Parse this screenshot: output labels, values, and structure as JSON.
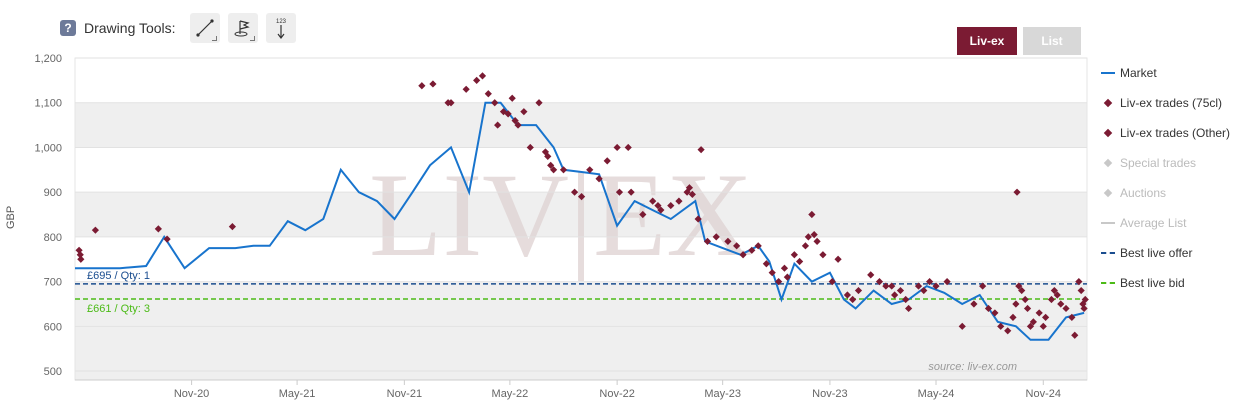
{
  "toolbar": {
    "label": "Drawing Tools:",
    "help_glyph": "?",
    "counter_glyph": "123"
  },
  "tabs": [
    {
      "label": "Liv-ex"
    },
    {
      "label": "List"
    }
  ],
  "watermark": {
    "text": "LIV|EX",
    "source": "source: liv-ex.com"
  },
  "colors": {
    "market": "#1874cd",
    "trade": "#7b1b33",
    "offer": "#1a4d8f",
    "bid": "#4cbb17",
    "disabled": "#c8c8c8",
    "band": "#efefef"
  },
  "legend": [
    {
      "label": "Market",
      "symbol": "line",
      "color": "#1874cd",
      "dash": false,
      "disabled": false
    },
    {
      "label": "Liv-ex trades (75cl)",
      "symbol": "diamond",
      "color": "#7b1b33",
      "disabled": false
    },
    {
      "label": "Liv-ex trades (Other)",
      "symbol": "diamond",
      "color": "#7b1b33",
      "disabled": false
    },
    {
      "label": "Special trades",
      "symbol": "diamond",
      "color": "#c8c8c8",
      "disabled": true
    },
    {
      "label": "Auctions",
      "symbol": "diamond",
      "color": "#c8c8c8",
      "disabled": true
    },
    {
      "label": "Average List",
      "symbol": "line",
      "color": "#c8c8c8",
      "dash": false,
      "disabled": true
    },
    {
      "label": "Best live offer",
      "symbol": "line",
      "color": "#1a4d8f",
      "dash": true,
      "disabled": false
    },
    {
      "label": "Best live bid",
      "symbol": "line",
      "color": "#4cbb17",
      "dash": true,
      "disabled": false
    }
  ],
  "chart_data": {
    "type": "line",
    "ylabel": "GBP",
    "ylim": [
      480,
      1200
    ],
    "yticks": [
      500,
      600,
      700,
      800,
      900,
      1000,
      1100,
      1200
    ],
    "ytick_labels": [
      "500",
      "600",
      "700",
      "800",
      "900",
      "1,000",
      "1,100",
      "1,200"
    ],
    "xlim": [
      "2020-04-15",
      "2025-01-15"
    ],
    "xticks": [
      {
        "date": "2020-11-01",
        "label": "Nov-20"
      },
      {
        "date": "2021-05-01",
        "label": "May-21"
      },
      {
        "date": "2021-11-01",
        "label": "Nov-21"
      },
      {
        "date": "2022-05-01",
        "label": "May-22"
      },
      {
        "date": "2022-11-01",
        "label": "Nov-22"
      },
      {
        "date": "2023-05-01",
        "label": "May-23"
      },
      {
        "date": "2023-11-01",
        "label": "Nov-23"
      },
      {
        "date": "2024-05-01",
        "label": "May-24"
      },
      {
        "date": "2024-11-01",
        "label": "Nov-24"
      }
    ],
    "grid": true,
    "reference_lines": [
      {
        "name": "Best live offer",
        "value": 695,
        "label": "£695 / Qty: 1",
        "color": "#1a4d8f"
      },
      {
        "name": "Best live bid",
        "value": 661,
        "label": "£661 / Qty: 3",
        "color": "#4cbb17"
      }
    ],
    "series": [
      {
        "name": "Market",
        "kind": "line",
        "points": [
          [
            "2020-04-15",
            730
          ],
          [
            "2020-07-01",
            730
          ],
          [
            "2020-08-15",
            735
          ],
          [
            "2020-09-15",
            800
          ],
          [
            "2020-10-20",
            730
          ],
          [
            "2020-12-01",
            775
          ],
          [
            "2021-01-15",
            775
          ],
          [
            "2021-02-15",
            780
          ],
          [
            "2021-03-15",
            780
          ],
          [
            "2021-04-15",
            835
          ],
          [
            "2021-05-15",
            815
          ],
          [
            "2021-06-15",
            840
          ],
          [
            "2021-07-15",
            950
          ],
          [
            "2021-08-15",
            900
          ],
          [
            "2021-09-15",
            880
          ],
          [
            "2021-10-15",
            840
          ],
          [
            "2021-11-15",
            900
          ],
          [
            "2021-12-15",
            960
          ],
          [
            "2022-01-20",
            1000
          ],
          [
            "2022-02-20",
            900
          ],
          [
            "2022-03-20",
            1100
          ],
          [
            "2022-04-15",
            1100
          ],
          [
            "2022-05-15",
            1050
          ],
          [
            "2022-06-15",
            1050
          ],
          [
            "2022-07-15",
            1000
          ],
          [
            "2022-08-01",
            950
          ],
          [
            "2022-09-01",
            945
          ],
          [
            "2022-10-01",
            940
          ],
          [
            "2022-11-01",
            825
          ],
          [
            "2022-12-01",
            880
          ],
          [
            "2023-01-01",
            860
          ],
          [
            "2023-02-01",
            840
          ],
          [
            "2023-03-15",
            880
          ],
          [
            "2023-04-01",
            790
          ],
          [
            "2023-05-01",
            775
          ],
          [
            "2023-06-01",
            760
          ],
          [
            "2023-07-01",
            780
          ],
          [
            "2023-07-20",
            745
          ],
          [
            "2023-08-10",
            660
          ],
          [
            "2023-09-01",
            740
          ],
          [
            "2023-10-01",
            700
          ],
          [
            "2023-11-01",
            720
          ],
          [
            "2023-11-25",
            660
          ],
          [
            "2023-12-15",
            640
          ],
          [
            "2024-01-15",
            680
          ],
          [
            "2024-02-15",
            650
          ],
          [
            "2024-03-15",
            660
          ],
          [
            "2024-04-15",
            690
          ],
          [
            "2024-05-15",
            675
          ],
          [
            "2024-06-15",
            650
          ],
          [
            "2024-07-15",
            670
          ],
          [
            "2024-08-15",
            610
          ],
          [
            "2024-09-15",
            600
          ],
          [
            "2024-10-10",
            570
          ],
          [
            "2024-11-10",
            570
          ],
          [
            "2024-12-10",
            620
          ],
          [
            "2025-01-10",
            630
          ]
        ]
      },
      {
        "name": "Liv-ex trades (75cl)",
        "kind": "scatter",
        "points": [
          [
            "2020-04-22",
            770
          ],
          [
            "2020-04-24",
            760
          ],
          [
            "2020-04-25",
            750
          ],
          [
            "2020-05-20",
            815
          ],
          [
            "2020-09-05",
            818
          ],
          [
            "2020-09-20",
            795
          ],
          [
            "2021-01-10",
            823
          ],
          [
            "2021-12-01",
            1138
          ],
          [
            "2021-12-20",
            1142
          ],
          [
            "2022-01-15",
            1100
          ],
          [
            "2022-01-20",
            1100
          ],
          [
            "2022-02-15",
            1130
          ],
          [
            "2022-03-05",
            1150
          ],
          [
            "2022-03-15",
            1160
          ],
          [
            "2022-03-25",
            1120
          ],
          [
            "2022-04-05",
            1100
          ],
          [
            "2022-04-10",
            1050
          ],
          [
            "2022-04-20",
            1080
          ],
          [
            "2022-04-28",
            1075
          ],
          [
            "2022-05-05",
            1110
          ],
          [
            "2022-05-10",
            1060
          ],
          [
            "2022-05-15",
            1050
          ],
          [
            "2022-05-25",
            1080
          ],
          [
            "2022-06-05",
            1000
          ],
          [
            "2022-06-20",
            1100
          ],
          [
            "2022-07-01",
            990
          ],
          [
            "2022-07-05",
            980
          ],
          [
            "2022-07-10",
            960
          ],
          [
            "2022-07-15",
            950
          ],
          [
            "2022-08-01",
            950
          ],
          [
            "2022-08-20",
            900
          ],
          [
            "2022-09-01",
            890
          ],
          [
            "2022-09-15",
            950
          ],
          [
            "2022-10-01",
            930
          ],
          [
            "2022-10-15",
            970
          ],
          [
            "2022-11-01",
            1000
          ],
          [
            "2022-11-20",
            1000
          ],
          [
            "2022-11-05",
            900
          ],
          [
            "2022-11-25",
            900
          ],
          [
            "2022-12-15",
            850
          ],
          [
            "2023-01-01",
            880
          ],
          [
            "2023-01-10",
            870
          ],
          [
            "2023-01-15",
            860
          ],
          [
            "2023-02-01",
            870
          ],
          [
            "2023-02-15",
            880
          ],
          [
            "2023-03-01",
            900
          ],
          [
            "2023-03-05",
            910
          ],
          [
            "2023-03-10",
            895
          ],
          [
            "2023-03-20",
            840
          ],
          [
            "2023-03-25",
            995
          ],
          [
            "2023-04-05",
            790
          ],
          [
            "2023-04-20",
            800
          ],
          [
            "2023-05-10",
            790
          ],
          [
            "2023-05-25",
            780
          ],
          [
            "2023-06-05",
            760
          ],
          [
            "2023-06-20",
            770
          ],
          [
            "2023-07-01",
            780
          ],
          [
            "2023-07-15",
            740
          ],
          [
            "2023-07-25",
            720
          ],
          [
            "2023-08-05",
            700
          ],
          [
            "2023-08-15",
            730
          ],
          [
            "2023-08-20",
            710
          ],
          [
            "2023-09-01",
            760
          ],
          [
            "2023-09-10",
            745
          ],
          [
            "2023-09-20",
            780
          ],
          [
            "2023-09-25",
            800
          ],
          [
            "2023-10-01",
            850
          ],
          [
            "2023-10-05",
            805
          ],
          [
            "2023-10-10",
            790
          ],
          [
            "2023-10-20",
            760
          ],
          [
            "2023-11-05",
            700
          ],
          [
            "2023-11-15",
            750
          ],
          [
            "2023-12-01",
            670
          ],
          [
            "2023-12-10",
            660
          ],
          [
            "2023-12-20",
            680
          ],
          [
            "2024-01-10",
            715
          ],
          [
            "2024-01-25",
            700
          ],
          [
            "2024-02-05",
            690
          ],
          [
            "2024-02-15",
            690
          ],
          [
            "2024-02-20",
            670
          ],
          [
            "2024-03-01",
            680
          ],
          [
            "2024-03-10",
            660
          ],
          [
            "2024-03-15",
            640
          ],
          [
            "2024-04-01",
            690
          ],
          [
            "2024-04-10",
            680
          ],
          [
            "2024-04-20",
            700
          ],
          [
            "2024-05-01",
            690
          ],
          [
            "2024-05-20",
            700
          ],
          [
            "2024-06-15",
            600
          ],
          [
            "2024-07-05",
            650
          ],
          [
            "2024-07-20",
            690
          ],
          [
            "2024-07-30",
            640
          ],
          [
            "2024-08-10",
            630
          ],
          [
            "2024-08-20",
            600
          ],
          [
            "2024-09-01",
            590
          ],
          [
            "2024-09-10",
            620
          ],
          [
            "2024-09-15",
            650
          ],
          [
            "2024-09-17",
            900
          ],
          [
            "2024-09-20",
            690
          ],
          [
            "2024-09-25",
            680
          ],
          [
            "2024-10-01",
            660
          ],
          [
            "2024-10-05",
            640
          ],
          [
            "2024-10-10",
            600
          ],
          [
            "2024-10-15",
            610
          ],
          [
            "2024-10-25",
            630
          ],
          [
            "2024-11-01",
            600
          ],
          [
            "2024-11-05",
            620
          ],
          [
            "2024-11-15",
            660
          ],
          [
            "2024-11-20",
            680
          ],
          [
            "2024-11-25",
            670
          ],
          [
            "2024-12-01",
            650
          ],
          [
            "2024-12-10",
            640
          ],
          [
            "2024-12-20",
            620
          ],
          [
            "2024-12-25",
            580
          ],
          [
            "2025-01-01",
            700
          ],
          [
            "2025-01-05",
            680
          ],
          [
            "2025-01-08",
            650
          ],
          [
            "2025-01-10",
            640
          ],
          [
            "2025-01-12",
            660
          ]
        ]
      }
    ]
  }
}
